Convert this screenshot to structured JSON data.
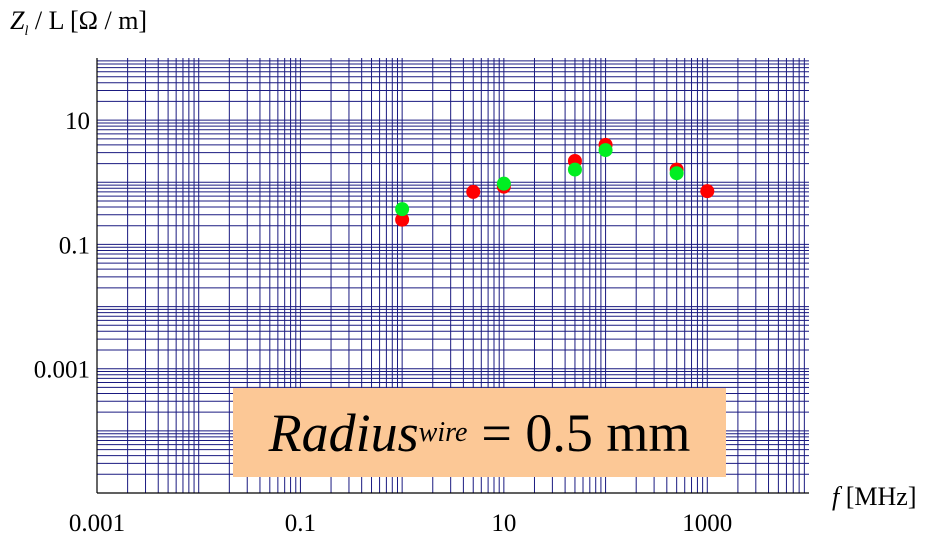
{
  "chart_data": {
    "type": "scatter",
    "title": "",
    "ylabel": {
      "symbol": "Z",
      "sub": "l",
      "rest": " / L [Ω / m]"
    },
    "xlabel": {
      "symbol": "f",
      "rest": " [MHz]"
    },
    "xscale": "log",
    "yscale": "log",
    "xlim": [
      0.001,
      10000
    ],
    "ylim": [
      1e-05,
      100
    ],
    "grid": true,
    "xticks": [
      0.001,
      0.1,
      10,
      1000
    ],
    "xtick_labels": [
      "0.001",
      "0.1",
      "10",
      "1000"
    ],
    "yticks": [
      0.001,
      0.1,
      10
    ],
    "ytick_labels": [
      "0.001",
      "0.1",
      "10"
    ],
    "series": [
      {
        "color": "#ff0000",
        "x": [
          1,
          5,
          10,
          50,
          100,
          500,
          1000
        ],
        "y": [
          0.25,
          0.7,
          0.85,
          2.2,
          4.0,
          1.6,
          0.72
        ]
      },
      {
        "color": "#00ee22",
        "x": [
          1,
          10,
          50,
          100,
          500
        ],
        "y": [
          0.37,
          0.95,
          1.6,
          3.3,
          1.4
        ]
      }
    ],
    "annotation": {
      "symbol": "Radius",
      "sub": "wire",
      "rest": "= 0.5 mm"
    }
  },
  "colors": {
    "grid": "#1a1a80",
    "axis": "#000000",
    "annotation_bg": "#fcc896"
  }
}
